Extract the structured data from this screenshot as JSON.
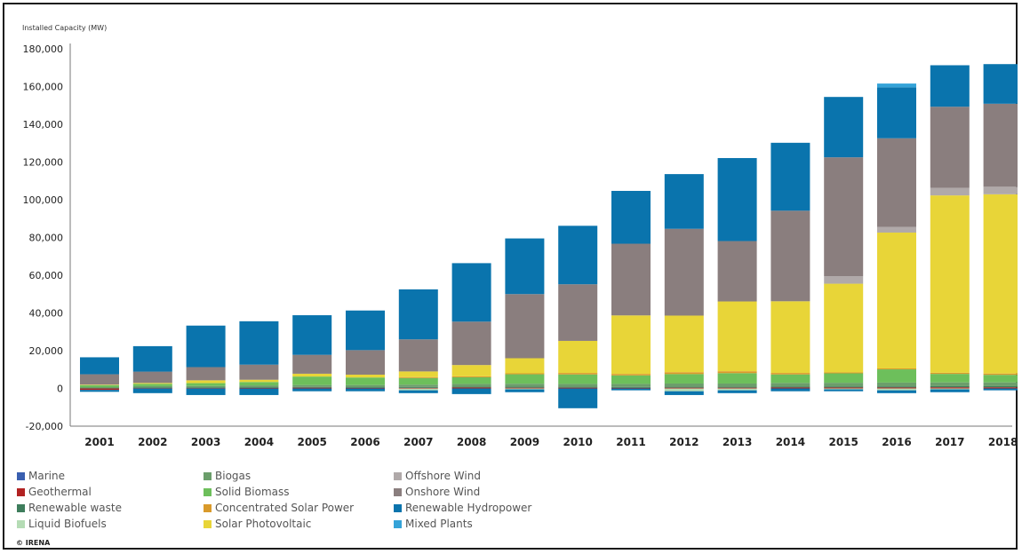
{
  "chart_data": {
    "type": "bar",
    "stacked": true,
    "title": "",
    "ylabel": "Installed Capacity (MW)",
    "xlabel": "",
    "ylim": [
      -20000,
      180000
    ],
    "yticks": [
      -20000,
      0,
      20000,
      40000,
      60000,
      80000,
      100000,
      120000,
      140000,
      160000,
      180000
    ],
    "ytick_labels": [
      "-20,000",
      "0",
      "20,000",
      "40,000",
      "60,000",
      "80,000",
      "100,000",
      "120,000",
      "140,000",
      "160,000",
      "180,000"
    ],
    "categories": [
      "2001",
      "2002",
      "2003",
      "2004",
      "2005",
      "2006",
      "2007",
      "2008",
      "2009",
      "2010",
      "2011",
      "2012",
      "2013",
      "2014",
      "2015",
      "2016",
      "2017",
      "2018"
    ],
    "grid": false,
    "legend_position": "bottom",
    "series": [
      {
        "name": "Marine",
        "color": "#3a5fb0",
        "values": [
          0,
          0,
          0,
          0,
          0,
          0,
          0,
          0,
          0,
          0,
          0,
          0,
          0,
          0,
          0,
          0,
          0,
          0
        ]
      },
      {
        "name": "Geothermal",
        "color": "#b22222",
        "values": [
          -800,
          200,
          200,
          300,
          400,
          300,
          300,
          500,
          400,
          400,
          300,
          400,
          400,
          500,
          500,
          500,
          600,
          600
        ]
      },
      {
        "name": "Renewable waste",
        "color": "#3e7d5c",
        "values": [
          200,
          300,
          300,
          400,
          400,
          400,
          500,
          500,
          600,
          500,
          500,
          500,
          500,
          600,
          600,
          600,
          600,
          600
        ]
      },
      {
        "name": "Liquid Biofuels",
        "color": "#b5dcb5",
        "values": [
          0,
          0,
          0,
          0,
          0,
          0,
          -1000,
          0,
          -500,
          0,
          0,
          -1500,
          -1000,
          0,
          -500,
          -1000,
          -500,
          0
        ]
      },
      {
        "name": "Biogas",
        "color": "#6b9e6b",
        "values": [
          500,
          700,
          800,
          900,
          1000,
          1100,
          1200,
          1400,
          1500,
          1500,
          1600,
          1700,
          1700,
          1800,
          1900,
          2000,
          2000,
          2000
        ]
      },
      {
        "name": "Solid Biomass",
        "color": "#6dbf5b",
        "values": [
          1000,
          1200,
          1500,
          1800,
          4500,
          4000,
          3500,
          3500,
          5000,
          5000,
          4500,
          5000,
          5500,
          4500,
          5000,
          7000,
          4500,
          4000
        ]
      },
      {
        "name": "Concentrated Solar Power",
        "color": "#d99a2b",
        "values": [
          0,
          0,
          0,
          0,
          0,
          0,
          500,
          500,
          500,
          800,
          800,
          1000,
          1000,
          800,
          500,
          500,
          600,
          700
        ]
      },
      {
        "name": "Solar Photovoltaic",
        "color": "#e8d538",
        "values": [
          300,
          500,
          1500,
          1200,
          1500,
          1500,
          3000,
          6000,
          8000,
          17000,
          31000,
          30000,
          37000,
          38000,
          47000,
          72000,
          94000,
          95000
        ]
      },
      {
        "name": "Offshore Wind",
        "color": "#b0a9a9",
        "values": [
          0,
          0,
          0,
          0,
          0,
          0,
          0,
          0,
          0,
          0,
          0,
          0,
          0,
          0,
          4000,
          3000,
          4000,
          4000
        ]
      },
      {
        "name": "Onshore Wind",
        "color": "#8a7e7e",
        "values": [
          5500,
          6000,
          7000,
          8000,
          10000,
          13000,
          17000,
          23000,
          34000,
          30000,
          38000,
          46000,
          32000,
          48000,
          63000,
          47000,
          43000,
          44000
        ]
      },
      {
        "name": "Renewable Hydropower",
        "color": "#0a74ad",
        "values": [
          9000,
          13500,
          22000,
          23000,
          21000,
          21000,
          26500,
          31000,
          29500,
          31000,
          28000,
          29000,
          44000,
          36000,
          32000,
          27000,
          22000,
          21000
        ]
      },
      {
        "name": "Mixed Plants",
        "color": "#35a3d8",
        "values": [
          0,
          0,
          0,
          0,
          0,
          0,
          0,
          0,
          0,
          0,
          0,
          0,
          0,
          0,
          0,
          2000,
          0,
          0
        ]
      },
      {
        "name": "",
        "color": "#0a74ad",
        "values": [
          -1000,
          -2500,
          -3500,
          -3500,
          -1500,
          -1500,
          -1500,
          -3000,
          -1500,
          -10500,
          -1000,
          -2000,
          -1500,
          -1500,
          -1000,
          -1500,
          -1500,
          -1000
        ]
      }
    ]
  },
  "legend": [
    {
      "label": "Marine",
      "color": "#3a5fb0"
    },
    {
      "label": "Biogas",
      "color": "#6b9e6b"
    },
    {
      "label": "Offshore Wind",
      "color": "#b0a9a9"
    },
    {
      "label": "Geothermal",
      "color": "#b22222"
    },
    {
      "label": "Solid Biomass",
      "color": "#6dbf5b"
    },
    {
      "label": "Onshore Wind",
      "color": "#8a7e7e"
    },
    {
      "label": "Renewable waste",
      "color": "#3e7d5c"
    },
    {
      "label": "Concentrated Solar Power",
      "color": "#d99a2b"
    },
    {
      "label": "Renewable Hydropower",
      "color": "#0a74ad"
    },
    {
      "label": "Liquid Biofuels",
      "color": "#b5dcb5"
    },
    {
      "label": "Solar Photovoltaic",
      "color": "#e8d538"
    },
    {
      "label": "Mixed Plants",
      "color": "#35a3d8"
    }
  ],
  "credit": "© IRENA"
}
